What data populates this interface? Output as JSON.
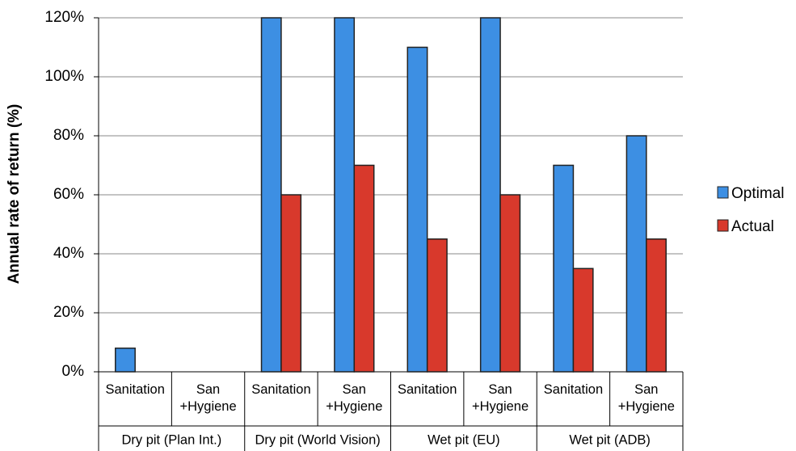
{
  "chart_data": {
    "type": "bar",
    "y_label": "Annual rate of return (%)",
    "categories": [
      "Sanitation",
      "San +Hygiene",
      "Sanitation",
      "San +Hygiene",
      "Sanitation",
      "San +Hygiene",
      "Sanitation",
      "San +Hygiene"
    ],
    "groups": [
      "Dry pit (Plan Int.)",
      "Dry pit (World Vision)",
      "Wet pit (EU)",
      "Wet pit (ADB)"
    ],
    "series": [
      {
        "name": "Optimal",
        "color": "#3d8fe3",
        "values": [
          8,
          null,
          120,
          120,
          110,
          120,
          70,
          80
        ]
      },
      {
        "name": "Actual",
        "color": "#d8392c",
        "values": [
          null,
          null,
          60,
          70,
          45,
          60,
          35,
          45
        ]
      }
    ],
    "ylim": [
      0,
      120
    ],
    "yticks": [
      {
        "value": 0,
        "label": "0%"
      },
      {
        "value": 20,
        "label": "20%"
      },
      {
        "value": 40,
        "label": "40%"
      },
      {
        "value": 60,
        "label": "60%"
      },
      {
        "value": 80,
        "label": "80%"
      },
      {
        "value": 100,
        "label": "100%"
      },
      {
        "value": 120,
        "label": "120%"
      }
    ],
    "grid": true,
    "legend": "right"
  }
}
